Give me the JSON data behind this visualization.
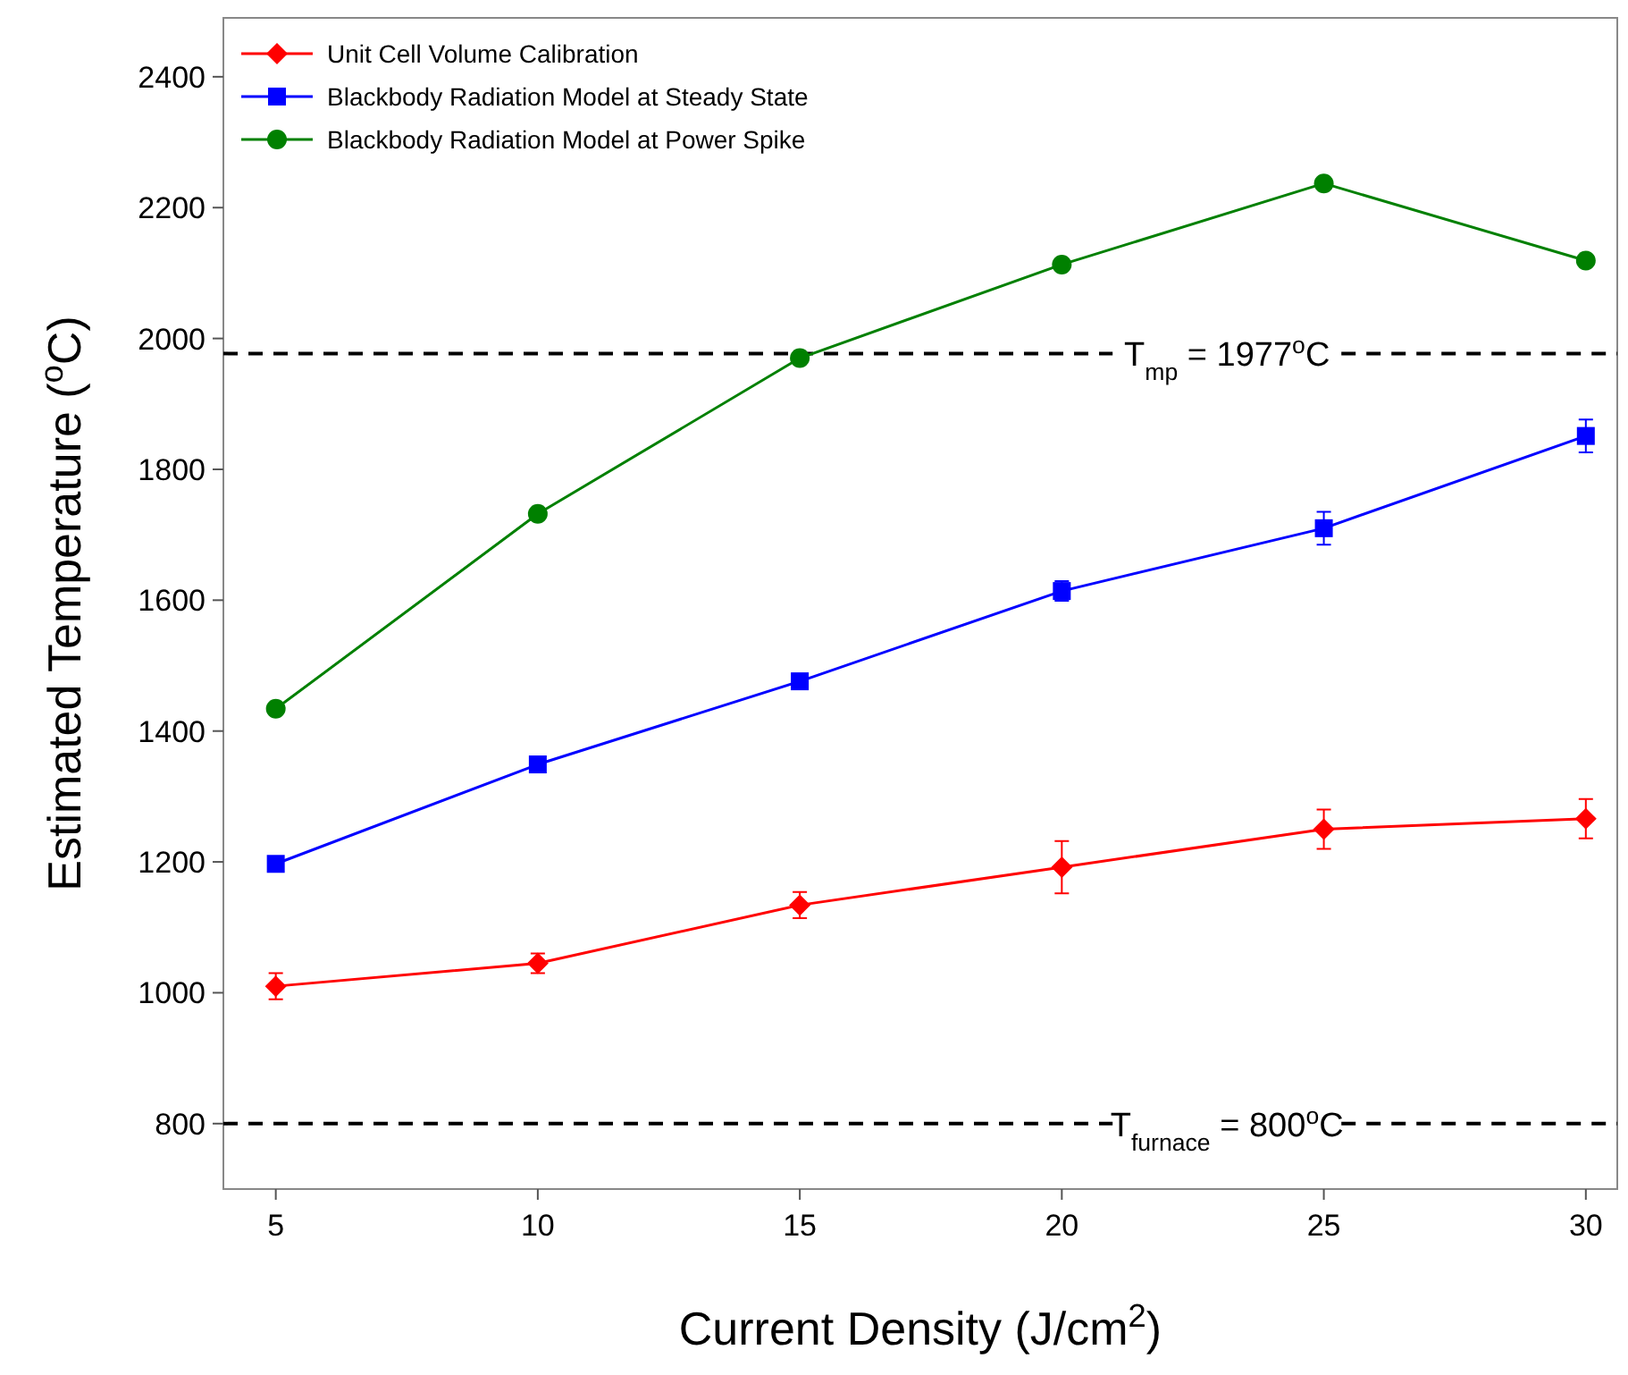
{
  "chart_data": {
    "type": "line",
    "xlabel": "Current Density (J/cm$^{2}$)",
    "ylabel": "Estimated Temperature ($^{o}$C)",
    "x": [
      5,
      10,
      15,
      20,
      25,
      30
    ],
    "series": [
      {
        "name": "Unit Cell Volume Calibration",
        "color": "#ff0000",
        "marker": "diamond",
        "values": [
          1010,
          1045,
          1134,
          1192,
          1250,
          1266
        ],
        "errors": [
          20,
          15,
          20,
          40,
          30,
          30
        ]
      },
      {
        "name": "Blackbody Radiation Model at Steady State",
        "color": "#0000ff",
        "marker": "square",
        "values": [
          1197,
          1349,
          1476,
          1614,
          1710,
          1851
        ],
        "errors": [
          null,
          null,
          null,
          15,
          25,
          25
        ]
      },
      {
        "name": "Blackbody Radiation Model at Power Spike",
        "color": "#008000",
        "marker": "circle",
        "values": [
          1434,
          1732,
          1970,
          2113,
          2237,
          2119
        ]
      }
    ],
    "xlim": [
      4,
      30.6
    ],
    "ylim": [
      700,
      2490
    ],
    "xticks": [
      5,
      10,
      15,
      20,
      25,
      30
    ],
    "yticks": [
      800,
      1000,
      1200,
      1400,
      1600,
      1800,
      2000,
      2200,
      2400
    ],
    "ref_lines": [
      {
        "axis": "y",
        "value": 1977,
        "label": "T$_{mp}$ = 1977$^{o}$C",
        "color": "#000000",
        "line_style": "dashed"
      },
      {
        "axis": "y",
        "value": 800,
        "label": "T$_{furnace}$ = 800$^{o}$C",
        "color": "#000000",
        "line_style": "dashed"
      }
    ],
    "legend": "top left"
  }
}
